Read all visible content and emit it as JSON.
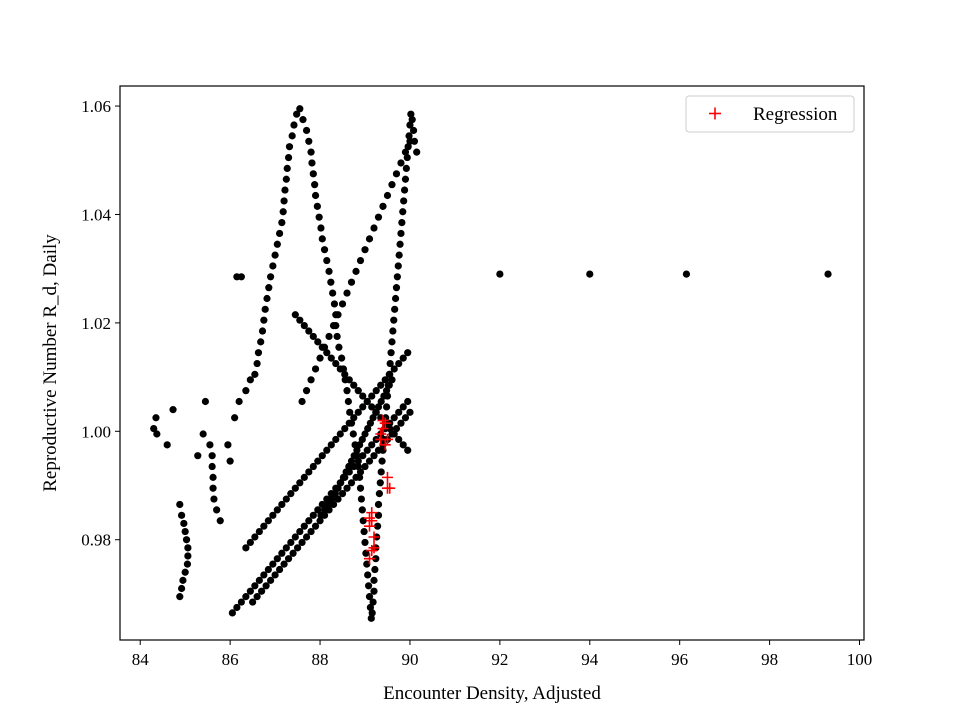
{
  "chart_data": {
    "type": "scatter",
    "title": "",
    "xlabel": "Encounter Density, Adjusted",
    "ylabel": "Reproductive Number R_d, Daily",
    "xlim": [
      83.55,
      100.1
    ],
    "ylim": [
      0.9615,
      1.0637
    ],
    "x_ticks": [
      84,
      86,
      88,
      90,
      92,
      94,
      96,
      98,
      100
    ],
    "x_tick_labels": [
      "84",
      "86",
      "88",
      "90",
      "92",
      "94",
      "96",
      "98",
      "100"
    ],
    "y_ticks": [
      0.98,
      1.0,
      1.02,
      1.04,
      1.06
    ],
    "y_tick_labels": [
      "0.98",
      "1.00",
      "1.02",
      "1.04",
      "1.06"
    ],
    "grid": false,
    "legend": {
      "position": "top-right",
      "entries": [
        "Regression"
      ]
    },
    "colors": {
      "observed": "#000000",
      "regression": "#ff0000"
    },
    "observed_series": {
      "marker": "dot",
      "x": [
        84.3,
        84.35,
        84.37,
        84.6,
        84.73,
        84.88,
        84.92,
        84.97,
        85.0,
        85.03,
        85.06,
        85.06,
        85.05,
        85.0,
        84.95,
        84.92,
        84.88,
        85.28,
        85.45,
        85.4,
        85.55,
        85.6,
        85.6,
        85.62,
        85.62,
        85.64,
        85.7,
        85.78,
        85.95,
        86.0,
        86.1,
        86.15,
        86.2,
        86.25,
        86.35,
        86.45,
        86.55,
        86.6,
        86.63,
        86.68,
        86.72,
        86.75,
        86.78,
        86.82,
        86.86,
        86.9,
        86.95,
        87.0,
        87.05,
        87.1,
        87.15,
        87.18,
        87.2,
        87.22,
        87.25,
        87.27,
        87.3,
        87.32,
        87.38,
        87.42,
        87.48,
        87.55,
        87.62,
        87.7,
        87.75,
        87.8,
        87.82,
        87.85,
        87.88,
        87.9,
        87.94,
        87.98,
        88.02,
        88.05,
        88.1,
        88.15,
        88.2,
        88.24,
        88.28,
        88.32,
        88.35,
        88.35,
        88.38,
        88.42,
        88.48,
        88.52,
        88.56,
        88.6,
        88.63,
        88.66,
        88.7,
        88.74,
        88.78,
        88.82,
        88.85,
        88.88,
        88.9,
        88.92,
        88.94,
        88.96,
        88.98,
        89.0,
        89.02,
        89.04,
        89.06,
        89.08,
        89.1,
        89.12,
        89.14,
        89.16,
        89.18,
        89.2,
        89.2,
        89.22,
        89.24,
        89.24,
        89.26,
        89.28,
        89.3,
        89.3,
        89.32,
        89.34,
        89.36,
        89.38,
        89.4,
        89.42,
        89.44,
        89.46,
        89.48,
        89.5,
        89.52,
        89.54,
        89.56,
        89.58,
        89.6,
        89.62,
        89.64,
        89.66,
        89.68,
        89.7,
        89.72,
        89.74,
        89.76,
        89.78,
        89.8,
        89.82,
        89.84,
        89.86,
        89.88,
        89.9,
        89.92,
        89.94,
        89.96,
        89.98,
        90.0,
        90.02,
        90.05,
        90.08,
        90.1,
        90.15,
        88.02,
        88.1,
        88.18,
        88.26,
        88.34,
        88.4,
        88.46,
        88.52,
        88.58,
        88.64,
        88.7,
        88.76,
        88.82,
        88.88,
        88.94,
        89.0,
        89.06,
        89.12,
        89.18,
        89.24,
        89.3,
        89.36,
        89.42,
        89.48,
        89.54,
        89.6,
        87.6,
        87.7,
        87.8,
        87.9,
        88.0,
        88.1,
        88.2,
        88.3,
        88.4,
        88.5,
        88.6,
        88.7,
        88.8,
        88.9,
        89.0,
        89.1,
        89.2,
        89.3,
        89.4,
        89.5,
        89.6,
        89.7,
        89.8,
        89.9,
        90.0,
        87.45,
        87.55,
        87.65,
        87.75,
        87.85,
        87.95,
        88.05,
        88.15,
        88.25,
        88.35,
        88.45,
        88.55,
        88.65,
        88.75,
        88.85,
        88.95,
        89.05,
        89.15,
        89.25,
        89.35,
        89.45,
        89.55,
        89.65,
        89.75,
        89.85,
        89.95,
        86.35,
        86.45,
        86.55,
        86.65,
        86.75,
        86.85,
        86.95,
        87.05,
        87.15,
        87.25,
        87.35,
        87.45,
        87.55,
        87.65,
        87.75,
        87.85,
        87.95,
        88.05,
        88.15,
        88.25,
        88.35,
        88.45,
        88.55,
        88.65,
        88.75,
        88.85,
        88.95,
        89.05,
        89.15,
        89.25,
        89.35,
        89.45,
        89.55,
        89.65,
        89.75,
        89.85,
        89.95,
        86.5,
        86.6,
        86.7,
        86.8,
        86.9,
        87.0,
        87.1,
        87.2,
        87.3,
        87.4,
        87.5,
        87.6,
        87.7,
        87.8,
        87.9,
        88.0,
        88.1,
        88.2,
        88.3,
        88.4,
        88.5,
        88.6,
        88.7,
        88.8,
        88.9,
        89.0,
        89.1,
        89.2,
        89.3,
        89.4,
        89.5,
        89.6,
        89.7,
        89.8,
        89.9,
        90.0,
        86.05,
        86.15,
        86.25,
        86.35,
        86.45,
        86.55,
        86.65,
        86.75,
        86.85,
        86.95,
        87.05,
        87.15,
        87.25,
        87.35,
        87.45,
        87.55,
        87.65,
        87.75,
        87.85,
        87.95,
        88.05,
        88.15,
        88.25,
        88.35,
        88.45,
        88.55,
        88.65,
        88.75,
        88.85,
        88.95,
        89.05,
        89.15,
        89.25,
        89.35,
        89.45,
        89.55,
        89.65,
        89.75,
        89.85,
        89.95,
        92.0,
        94.0,
        96.15,
        99.3
      ],
      "y": [
        1.0005,
        1.0025,
        0.9995,
        0.9975,
        1.004,
        0.9865,
        0.9845,
        0.983,
        0.9815,
        0.98,
        0.9785,
        0.977,
        0.9755,
        0.974,
        0.9725,
        0.971,
        0.9695,
        0.9955,
        1.0055,
        0.9995,
        0.9975,
        0.9955,
        0.9935,
        0.9915,
        0.9895,
        0.9875,
        0.9855,
        0.9835,
        0.9975,
        0.9945,
        1.0025,
        1.0285,
        1.0055,
        1.0285,
        1.0075,
        1.0095,
        1.0105,
        1.0125,
        1.0145,
        1.0165,
        1.0185,
        1.0205,
        1.0225,
        1.0245,
        1.0265,
        1.0285,
        1.0305,
        1.0325,
        1.0345,
        1.0365,
        1.0385,
        1.0405,
        1.0425,
        1.0445,
        1.0465,
        1.0485,
        1.0505,
        1.0525,
        1.0545,
        1.0565,
        1.0585,
        1.0595,
        1.0575,
        1.0555,
        1.0535,
        1.0515,
        1.0495,
        1.0475,
        1.0455,
        1.0435,
        1.0415,
        1.0395,
        1.0375,
        1.0355,
        1.0335,
        1.0315,
        1.0295,
        1.0275,
        1.0255,
        1.0235,
        1.0215,
        1.0195,
        1.0175,
        1.0155,
        1.0135,
        1.0115,
        1.0095,
        1.0075,
        1.0055,
        1.0035,
        1.0015,
        0.9995,
        0.9975,
        0.9955,
        0.9935,
        0.9915,
        0.9895,
        0.9875,
        0.9855,
        0.9835,
        0.9815,
        0.9795,
        0.9775,
        0.9755,
        0.9735,
        0.9715,
        0.9695,
        0.9675,
        0.9655,
        0.9665,
        0.9685,
        0.9705,
        0.9725,
        0.9745,
        0.9765,
        0.9785,
        0.9805,
        0.9825,
        0.9845,
        0.9865,
        0.9885,
        0.9905,
        0.9925,
        0.9945,
        0.9965,
        0.9985,
        1.0005,
        1.0025,
        1.0045,
        1.0065,
        1.0085,
        1.0105,
        1.0125,
        1.0145,
        1.0165,
        1.0185,
        1.0205,
        1.0225,
        1.0245,
        1.0265,
        1.0285,
        1.0305,
        1.0325,
        1.0345,
        1.0365,
        1.0385,
        1.0405,
        1.0425,
        1.0445,
        1.0465,
        1.0485,
        1.0505,
        1.0525,
        1.0545,
        1.0565,
        1.0585,
        1.0575,
        1.0555,
        1.0535,
        1.0515,
        0.9845,
        0.9855,
        0.9865,
        0.9875,
        0.9885,
        0.9895,
        0.9905,
        0.9915,
        0.9925,
        0.9935,
        0.9945,
        0.9955,
        0.9965,
        0.9975,
        0.9985,
        0.9995,
        1.0005,
        1.0015,
        1.0025,
        1.0035,
        1.0045,
        1.0055,
        1.0065,
        1.0075,
        1.0085,
        1.0095,
        1.0055,
        1.0075,
        1.0095,
        1.0115,
        1.0135,
        1.0155,
        1.0175,
        1.0195,
        1.0215,
        1.0235,
        1.0255,
        1.0275,
        1.0295,
        1.0315,
        1.0335,
        1.0355,
        1.0375,
        1.0395,
        1.0415,
        1.0435,
        1.0455,
        1.0475,
        1.0495,
        1.0515,
        1.0535,
        1.0215,
        1.0205,
        1.0195,
        1.0185,
        1.0175,
        1.0165,
        1.0155,
        1.0145,
        1.0135,
        1.0125,
        1.0115,
        1.0105,
        1.0095,
        1.0085,
        1.0075,
        1.0065,
        1.0055,
        1.0045,
        1.0035,
        1.0025,
        1.0015,
        1.0005,
        0.9995,
        0.9985,
        0.9975,
        0.9965,
        0.9785,
        0.9795,
        0.9805,
        0.9815,
        0.9825,
        0.9835,
        0.9845,
        0.9855,
        0.9865,
        0.9875,
        0.9885,
        0.9895,
        0.9905,
        0.9915,
        0.9925,
        0.9935,
        0.9945,
        0.9955,
        0.9965,
        0.9975,
        0.9985,
        0.9995,
        1.0005,
        1.0015,
        1.0025,
        1.0035,
        1.0045,
        1.0055,
        1.0065,
        1.0075,
        1.0085,
        1.0095,
        1.0105,
        1.0115,
        1.0125,
        1.0135,
        1.0145,
        0.9685,
        0.9695,
        0.9705,
        0.9715,
        0.9725,
        0.9735,
        0.9745,
        0.9755,
        0.9765,
        0.9775,
        0.9785,
        0.9795,
        0.9805,
        0.9815,
        0.9825,
        0.9835,
        0.9845,
        0.9855,
        0.9865,
        0.9875,
        0.9885,
        0.9895,
        0.9905,
        0.9915,
        0.9925,
        0.9935,
        0.9945,
        0.9955,
        0.9965,
        0.9975,
        0.9985,
        0.9995,
        1.0005,
        1.0015,
        1.0025,
        1.0035,
        0.9665,
        0.9675,
        0.9685,
        0.9695,
        0.9705,
        0.9715,
        0.9725,
        0.9735,
        0.9745,
        0.9755,
        0.9765,
        0.9775,
        0.9785,
        0.9795,
        0.9805,
        0.9815,
        0.9825,
        0.9835,
        0.9845,
        0.9855,
        0.9865,
        0.9875,
        0.9885,
        0.9895,
        0.9905,
        0.9915,
        0.9925,
        0.9935,
        0.9945,
        0.9955,
        0.9965,
        0.9975,
        0.9985,
        0.9995,
        1.0005,
        1.0015,
        1.0025,
        1.0035,
        1.0045,
        1.0055,
        1.029,
        1.029,
        1.029,
        1.029
      ]
    },
    "regression_series": {
      "name": "Regression",
      "marker": "plus",
      "x": [
        89.1,
        89.15,
        89.2,
        89.2,
        89.1,
        89.15,
        89.1,
        89.15,
        89.35,
        89.4,
        89.45,
        89.5,
        89.5,
        89.55,
        89.4,
        89.45,
        89.35,
        89.5
      ],
      "y": [
        0.9765,
        0.978,
        0.9785,
        0.9805,
        0.9825,
        0.9835,
        0.984,
        0.985,
        0.9995,
        1.0005,
        1.0015,
        0.9985,
        0.9895,
        0.9895,
        1.002,
        0.9975,
        0.9985,
        0.9915
      ]
    }
  }
}
